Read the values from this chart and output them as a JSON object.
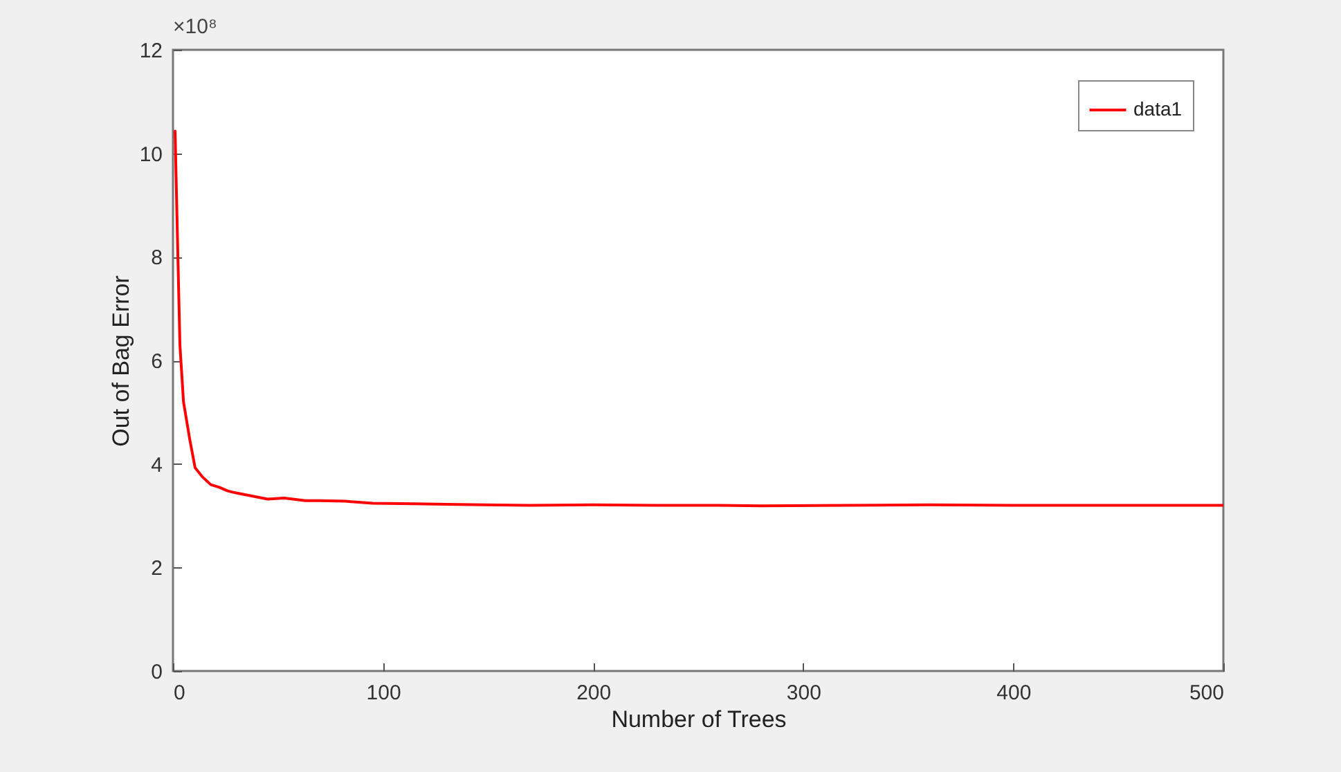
{
  "chart_data": {
    "type": "line",
    "xlabel": "Number of Trees",
    "ylabel": "Out of Bag Error",
    "annotations": [
      "×10⁸"
    ],
    "xlim": [
      0,
      500
    ],
    "xticks": [
      0,
      100,
      200,
      300,
      400,
      500
    ],
    "ylim": [
      0,
      12
    ],
    "yticks": [
      0,
      2,
      4,
      6,
      8,
      10,
      12
    ],
    "grid": false,
    "legend": "top right",
    "line_style": "solid",
    "marker": "none",
    "x": [
      1,
      2,
      3.3,
      5,
      8,
      10.5,
      14,
      18,
      22,
      26,
      30,
      35,
      40,
      45,
      53,
      63,
      70,
      82,
      95,
      115,
      130,
      148,
      170,
      200,
      230,
      260,
      280,
      320,
      360,
      400,
      440,
      470,
      500
    ],
    "series": [
      {
        "name": "data1",
        "color": "#ff0000",
        "values": [
          10.43,
          8.6,
          6.3,
          5.2,
          4.47,
          3.93,
          3.75,
          3.6,
          3.55,
          3.48,
          3.44,
          3.4,
          3.36,
          3.32,
          3.34,
          3.29,
          3.29,
          3.28,
          3.24,
          3.23,
          3.22,
          3.21,
          3.2,
          3.21,
          3.2,
          3.2,
          3.19,
          3.2,
          3.21,
          3.2,
          3.2,
          3.2,
          3.2
        ]
      }
    ]
  }
}
